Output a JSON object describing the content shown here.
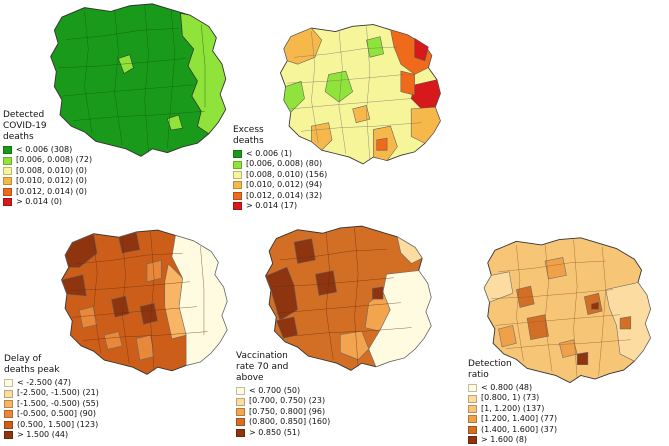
{
  "maps": [
    {
      "id": "detected-covid-deaths",
      "title": "Detected\nCOVID-19\ndeaths",
      "legend": [
        {
          "label": "< 0.006 (308)",
          "color": "#1a9a1a"
        },
        {
          "label": "[0.006, 0.008) (72)",
          "color": "#8fe33a"
        },
        {
          "label": "[0.008, 0.010) (0)",
          "color": "#f7f59a"
        },
        {
          "label": "[0.010, 0.012) (0)",
          "color": "#f7b84b"
        },
        {
          "label": "[0.012, 0.014) (0)",
          "color": "#f06a1c"
        },
        {
          "label": "> 0.014 (0)",
          "color": "#d7191c"
        }
      ]
    },
    {
      "id": "excess-deaths",
      "title": "Excess\ndeaths",
      "legend": [
        {
          "label": "< 0.006 (1)",
          "color": "#1a9a1a"
        },
        {
          "label": "[0.006, 0.008) (80)",
          "color": "#8fe33a"
        },
        {
          "label": "[0.008, 0.010) (156)",
          "color": "#f7f59a"
        },
        {
          "label": "[0.010, 0.012) (94)",
          "color": "#f7b84b"
        },
        {
          "label": "[0.012, 0.014) (32)",
          "color": "#f06a1c"
        },
        {
          "label": "> 0.014 (17)",
          "color": "#d7191c"
        }
      ]
    },
    {
      "id": "delay-of-deaths-peak",
      "title": "Delay of\ndeaths peak",
      "legend": [
        {
          "label": "< -2.500 (47)",
          "color": "#fffbe0"
        },
        {
          "label": "[-2.500, -1.500) (21)",
          "color": "#fcdca0"
        },
        {
          "label": "[-1.500, -0.500) (55)",
          "color": "#f7b565"
        },
        {
          "label": "[-0.500, 0.500] (90)",
          "color": "#e8883a"
        },
        {
          "label": "(0.500, 1.500] (123)",
          "color": "#cc5e1a"
        },
        {
          "label": "> 1.500 (44)",
          "color": "#8e3510"
        }
      ]
    },
    {
      "id": "vaccination-rate",
      "title": "Vaccination\nrate 70 and\nabove",
      "legend": [
        {
          "label": "< 0.700 (50)",
          "color": "#fffbe0"
        },
        {
          "label": "[0.700, 0.750) (23)",
          "color": "#fcdca0"
        },
        {
          "label": "[0.750, 0.800] (96)",
          "color": "#f2a44f"
        },
        {
          "label": "(0.800, 0.850] (160)",
          "color": "#d26f24"
        },
        {
          "label": "> 0.850 (51)",
          "color": "#8e3510"
        }
      ]
    },
    {
      "id": "detection-ratio",
      "title": "Detection\nratio",
      "legend": [
        {
          "label": "< 0.800 (48)",
          "color": "#fffbe0"
        },
        {
          "label": "[0.800, 1) (73)",
          "color": "#fcdca0"
        },
        {
          "label": "[1, 1.200) (137)",
          "color": "#f7c576"
        },
        {
          "label": "[1.200, 1.400] (77)",
          "color": "#efa049"
        },
        {
          "label": "(1.400, 1.600] (37)",
          "color": "#d26f24"
        },
        {
          "label": "> 1.600 (8)",
          "color": "#8e3510"
        }
      ]
    }
  ]
}
